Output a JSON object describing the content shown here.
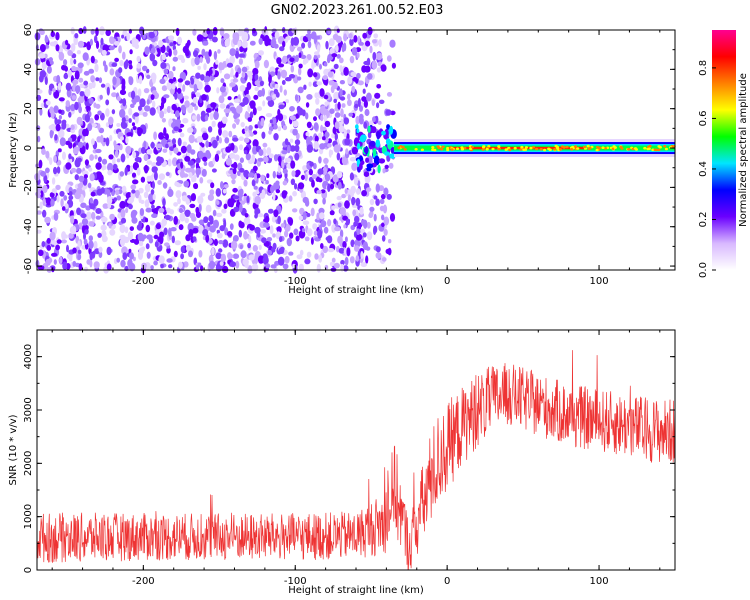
{
  "title": "GN02.2023.261.00.52.E03",
  "chart_data": [
    {
      "type": "heatmap",
      "xlabel": "Height of straight line (km)",
      "ylabel": "Frequency (Hz)",
      "xlim": [
        -270,
        150
      ],
      "ylim": [
        -62,
        60
      ],
      "xticks": [
        -200,
        -100,
        0,
        100
      ],
      "xtick_labels": [
        "-200",
        "-100",
        "0",
        "100"
      ],
      "yticks": [
        -60,
        -40,
        -20,
        0,
        20,
        40,
        60
      ],
      "ytick_labels": [
        "-60",
        "-40",
        "-20",
        "0",
        "20",
        "40",
        "60"
      ],
      "colorbar": {
        "label": "Normalized spectral amplitude",
        "range": [
          0,
          0.95
        ],
        "ticks": [
          0.0,
          0.2,
          0.4,
          0.6,
          0.8
        ],
        "tick_labels": [
          "0.0",
          "0.2",
          "0.4",
          "0.6",
          "0.8"
        ],
        "colormap": [
          "#ffffff",
          "#d8b8ff",
          "#6a00ff",
          "#0000ff",
          "#00e5ff",
          "#00ff00",
          "#ffff00",
          "#ff8000",
          "#ff0000",
          "#ff0090"
        ]
      },
      "regions": {
        "noise_x_range": [
          -270,
          -60
        ],
        "transition_x_range": [
          -60,
          -35
        ],
        "signal_x_range": [
          -35,
          150
        ],
        "signal_frequency": 0
      }
    },
    {
      "type": "line",
      "xlabel": "Height of straight line (km)",
      "ylabel": "SNR (10 * v/v)",
      "xlim": [
        -270,
        150
      ],
      "ylim": [
        0,
        4500
      ],
      "xticks": [
        -200,
        -100,
        0,
        100
      ],
      "xtick_labels": [
        "-200",
        "-100",
        "0",
        "100"
      ],
      "yticks": [
        0,
        1000,
        2000,
        3000,
        4000
      ],
      "ytick_labels": [
        "0",
        "1000",
        "2000",
        "3000",
        "4000"
      ],
      "series": [
        {
          "color": "#ee3333",
          "x": [
            -270,
            -200,
            -100,
            -60,
            -40,
            -35,
            -30,
            -25,
            -20,
            -15,
            -10,
            -5,
            0,
            10,
            20,
            30,
            40,
            60,
            80,
            100,
            120,
            140,
            150
          ],
          "y": [
            600,
            620,
            620,
            650,
            900,
            1600,
            1000,
            400,
            900,
            1300,
            1800,
            2100,
            2300,
            2700,
            3000,
            3200,
            3300,
            3100,
            2900,
            2800,
            2700,
            2600,
            2600
          ],
          "noise_amplitude": [
            480,
            450,
            450,
            450,
            600,
            900,
            700,
            500,
            700,
            800,
            900,
            900,
            850,
            750,
            700,
            650,
            600,
            600,
            600,
            600,
            600,
            620,
            620
          ]
        }
      ]
    }
  ]
}
